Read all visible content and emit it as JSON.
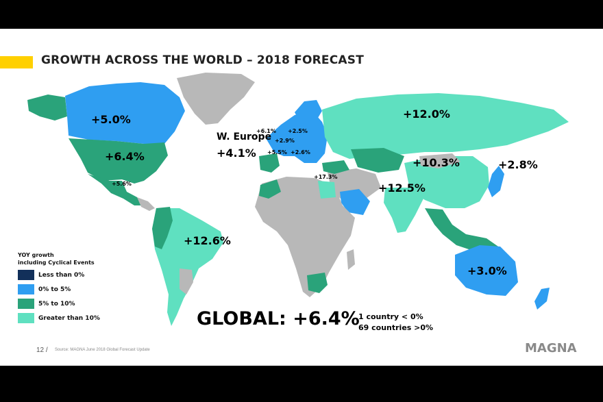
{
  "title": "GROWTH ACROSS THE WORLD – 2018 FORECAST",
  "colors": {
    "less_than_0": "#12305a",
    "zero_to_5": "#2f9ef1",
    "five_to_10": "#2aa37a",
    "greater_than_10": "#5fe0c0",
    "no_data": "#b8b8b8",
    "accent": "#ffd000"
  },
  "map_labels": {
    "canada": "+5.0%",
    "usa": "+6.4%",
    "mexico": "+5.6%",
    "brazil": "+12.6%",
    "w_europe_name": "W. Europe",
    "w_europe_value": "+4.1%",
    "uk": "+6.1%",
    "germany": "+2.9%",
    "poland": "+2.5%",
    "spain": "+5.5%",
    "italy": "+2.6%",
    "egypt": "+17.3%",
    "russia": "+12.0%",
    "china": "+10.3%",
    "japan": "+2.8%",
    "india": "+12.5%",
    "australia": "+3.0%"
  },
  "legend": {
    "title_line1": "YOY growth",
    "title_line2": "including Cyclical Events",
    "items": [
      {
        "label": "Less than 0%"
      },
      {
        "label": "0% to 5%"
      },
      {
        "label": "5% to 10%"
      },
      {
        "label": "Greater than 10%"
      }
    ]
  },
  "global": {
    "text": "GLOBAL: +6.4%",
    "note1": "1 country < 0%",
    "note2": "69 countries >0%"
  },
  "footer": {
    "page": "12 /",
    "source": "Source: MAGNA June 2018 Global Forecast Update",
    "logo": "MAGNA"
  }
}
